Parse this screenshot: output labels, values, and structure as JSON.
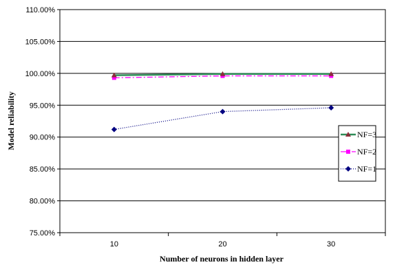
{
  "chart_data": {
    "type": "line",
    "categories": [
      "10",
      "20",
      "30"
    ],
    "series": [
      {
        "name": "NF=3",
        "values": [
          99.7,
          99.9,
          99.9
        ],
        "color": "#2e8b57",
        "marker": "triangle",
        "dash": ""
      },
      {
        "name": "NF=2",
        "values": [
          99.3,
          99.6,
          99.6
        ],
        "color": "#ff00ff",
        "marker": "square",
        "dash": "8,3,2,3"
      },
      {
        "name": "NF=1",
        "values": [
          91.2,
          94.0,
          94.6
        ],
        "color": "#000080",
        "marker": "diamond",
        "dash": "1,2"
      }
    ],
    "xlabel": "Number of neurons in hidden layer",
    "ylabel": "Model reliability",
    "ylim": [
      75,
      110
    ],
    "yticks": [
      "75.00%",
      "80.00%",
      "85.00%",
      "90.00%",
      "95.00%",
      "100.00%",
      "105.00%",
      "110.00%"
    ],
    "grid": "horizontal",
    "legend_position": "right"
  }
}
